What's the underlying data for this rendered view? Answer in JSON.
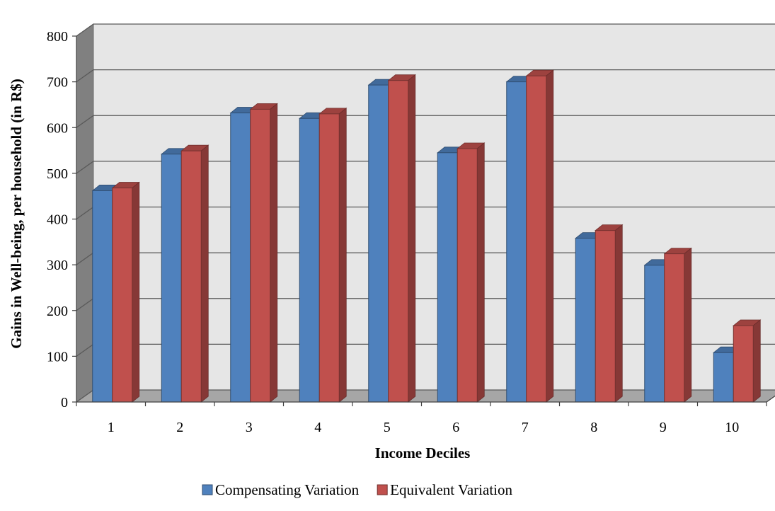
{
  "chart_data": {
    "type": "bar",
    "categories": [
      "1",
      "2",
      "3",
      "4",
      "5",
      "6",
      "7",
      "8",
      "9",
      "10"
    ],
    "series": [
      {
        "name": "Compensating Variation",
        "color": "#4f81bd",
        "values": [
          462,
          542,
          632,
          620,
          693,
          545,
          700,
          358,
          299,
          108
        ]
      },
      {
        "name": "Equivalent Variation",
        "color": "#c0504d",
        "values": [
          468,
          549,
          640,
          630,
          703,
          554,
          713,
          375,
          324,
          167
        ]
      }
    ],
    "xlabel": "Income Deciles",
    "ylabel": "Gains in Well-being, per household (in R$)",
    "ylim": [
      0,
      800
    ],
    "yticks": [
      0,
      100,
      200,
      300,
      400,
      500,
      600,
      700,
      800
    ],
    "grid": true,
    "style": "3d-clustered-column",
    "legend_position": "bottom"
  }
}
